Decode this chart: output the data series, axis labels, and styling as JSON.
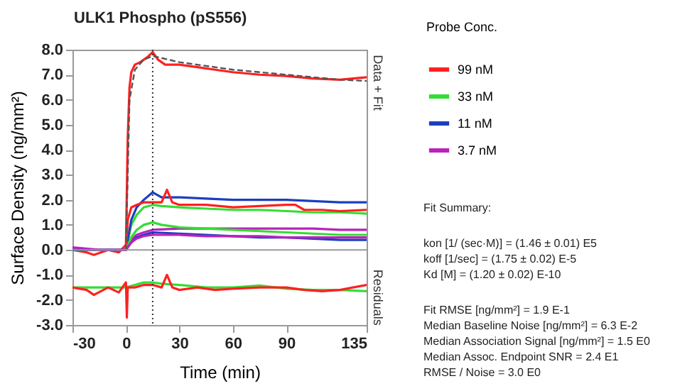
{
  "chart_data": {
    "type": "line",
    "title": "ULK1 Phospho (pS556)",
    "xlabel": "Time (min)",
    "ylabel": "Surface Density (ng/mm²)",
    "legend_title": "Probe Conc.",
    "legend": "right",
    "grid": false,
    "xlim": [
      -30,
      135
    ],
    "xticks": [
      -30,
      0,
      30,
      60,
      90,
      135
    ],
    "ylim": [
      -3,
      8
    ],
    "yticks": [
      {
        "value": -3,
        "label": "-3.0"
      },
      {
        "value": -2,
        "label": "-2.0"
      },
      {
        "value": -1,
        "label": "-1.0"
      },
      {
        "value": 0,
        "label": "0.0"
      },
      {
        "value": 1,
        "label": "1.0"
      },
      {
        "value": 2,
        "label": "2.0"
      },
      {
        "value": 3,
        "label": "3.0"
      },
      {
        "value": 4,
        "label": "4.0"
      },
      {
        "value": 5,
        "label": "5.0"
      },
      {
        "value": 6,
        "label": "6.0"
      },
      {
        "value": 7,
        "label": "7.0"
      },
      {
        "value": 8,
        "label": "8.0"
      }
    ],
    "series": [
      {
        "name": "99 nM",
        "color": "#ff2020",
        "x": [
          -30,
          -22,
          -18,
          -10,
          -4,
          0,
          1,
          2,
          3,
          5,
          8,
          12,
          15,
          18,
          22,
          30,
          40,
          50,
          60,
          75,
          90,
          105,
          120,
          135
        ],
        "values": [
          0.0,
          -0.1,
          -0.2,
          0.0,
          -0.1,
          0.2,
          4.5,
          6.5,
          7.1,
          7.4,
          7.5,
          7.7,
          7.9,
          7.6,
          7.4,
          7.4,
          7.3,
          7.2,
          7.1,
          7.0,
          6.95,
          6.85,
          6.8,
          6.9
        ]
      },
      {
        "name": "33 nM",
        "color": "#33dd33",
        "x": [
          -30,
          -15,
          0,
          3,
          6,
          10,
          15,
          20,
          30,
          45,
          60,
          75,
          90,
          105,
          120,
          135
        ],
        "values": [
          0.0,
          0.0,
          0.0,
          1.0,
          1.4,
          1.7,
          1.8,
          1.75,
          1.7,
          1.65,
          1.6,
          1.6,
          1.55,
          1.5,
          1.5,
          1.45
        ]
      },
      {
        "name": "11 nM",
        "color": "#1a3fbf",
        "x": [
          -30,
          -15,
          0,
          3,
          6,
          10,
          15,
          20,
          30,
          45,
          60,
          75,
          90,
          105,
          120,
          135
        ],
        "values": [
          0.0,
          0.0,
          0.0,
          1.2,
          1.7,
          2.0,
          2.3,
          2.1,
          2.1,
          2.05,
          2.0,
          2.0,
          2.0,
          1.95,
          1.9,
          1.9
        ]
      },
      {
        "name": "3.7 nM",
        "color": "#bb22bb",
        "x": [
          -30,
          -15,
          0,
          3,
          6,
          10,
          15,
          30,
          45,
          60,
          75,
          90,
          105,
          120,
          135
        ],
        "values": [
          0.1,
          0.0,
          0.0,
          0.4,
          0.6,
          0.7,
          0.8,
          0.85,
          0.85,
          0.85,
          0.85,
          0.85,
          0.85,
          0.8,
          0.8
        ]
      },
      {
        "color": "#ff2020",
        "x": [
          0,
          1,
          3,
          6,
          10,
          15,
          20,
          23,
          26,
          30,
          45,
          60,
          75,
          90,
          95,
          100,
          110,
          120,
          135
        ],
        "values": [
          0.0,
          1.2,
          1.7,
          1.8,
          1.9,
          1.9,
          1.9,
          2.4,
          1.9,
          1.8,
          1.8,
          1.7,
          1.75,
          1.8,
          1.8,
          1.6,
          1.6,
          1.55,
          1.6
        ]
      },
      {
        "color": "#33dd33",
        "x": [
          0,
          3,
          6,
          10,
          15,
          20,
          30,
          45,
          60,
          75,
          90,
          105,
          120,
          135
        ],
        "values": [
          0.0,
          0.5,
          0.8,
          1.0,
          1.1,
          1.0,
          0.9,
          0.85,
          0.8,
          0.75,
          0.7,
          0.65,
          0.6,
          0.6
        ]
      },
      {
        "color": "#1a3fbf",
        "x": [
          0,
          3,
          6,
          10,
          15,
          30,
          45,
          60,
          75,
          90,
          105,
          120,
          135
        ],
        "values": [
          0.0,
          0.3,
          0.5,
          0.6,
          0.7,
          0.65,
          0.6,
          0.55,
          0.5,
          0.5,
          0.45,
          0.4,
          0.4
        ]
      },
      {
        "color": "#bb22bb",
        "x": [
          0,
          3,
          6,
          10,
          15,
          30,
          45,
          60,
          75,
          90,
          105,
          120,
          135
        ],
        "values": [
          0.0,
          0.3,
          0.45,
          0.55,
          0.6,
          0.6,
          0.55,
          0.55,
          0.55,
          0.5,
          0.5,
          0.5,
          0.5
        ]
      },
      {
        "color": "#555555",
        "line_style": "dashed",
        "x": [
          0,
          2,
          5,
          10,
          15,
          30,
          60,
          90,
          120,
          135
        ],
        "values": [
          0.0,
          6.0,
          7.2,
          7.6,
          7.75,
          7.5,
          7.2,
          7.0,
          6.8,
          6.75
        ]
      },
      {
        "color": "#33dd33",
        "x": [
          -30,
          -15,
          0,
          5,
          10,
          15,
          20,
          30,
          45,
          60,
          75,
          90,
          105,
          120,
          135
        ],
        "values": [
          -1.5,
          -1.5,
          -1.5,
          -1.4,
          -1.3,
          -1.3,
          -1.35,
          -1.4,
          -1.5,
          -1.5,
          -1.42,
          -1.55,
          -1.6,
          -1.6,
          -1.65
        ]
      },
      {
        "color": "#ff2020",
        "x": [
          -30,
          -22,
          -18,
          -10,
          -4,
          0,
          0.5,
          1,
          5,
          10,
          15,
          20,
          23,
          26,
          30,
          40,
          50,
          60,
          75,
          90,
          100,
          110,
          120,
          135
        ],
        "values": [
          -1.5,
          -1.6,
          -1.8,
          -1.5,
          -1.7,
          -1.3,
          -2.7,
          -1.5,
          -1.5,
          -1.4,
          -1.4,
          -1.5,
          -1.0,
          -1.5,
          -1.6,
          -1.5,
          -1.6,
          -1.55,
          -1.5,
          -1.5,
          -1.6,
          -1.65,
          -1.6,
          -1.4
        ]
      }
    ],
    "ref_lines": [
      {
        "axis": "y",
        "value": 0,
        "color": "#999999",
        "line_style": "solid"
      },
      {
        "axis": "x",
        "value": 15,
        "color": "#333333",
        "line_style": "dotted"
      }
    ],
    "annotations": [
      "Data + Fit",
      "Residuals",
      "Fit Summary:",
      "kon  [1/ (sec·M)]  =   (1.46 ± 0.01) E5",
      "koff  [1/sec]  =   (1.75 ± 0.02) E-5",
      "Kd  [M]  =   (1.20 ± 0.02) E-10",
      "Fit RMSE [ng/mm²]  =   1.9 E-1",
      "Median Baseline Noise [ng/mm²]  =   6.3 E-2",
      "Median Association Signal [ng/mm²]  =   1.5 E0",
      "Median Assoc. Endpoint SNR  =   2.4 E1",
      "RMSE / Noise  =   3.0 E0"
    ]
  }
}
